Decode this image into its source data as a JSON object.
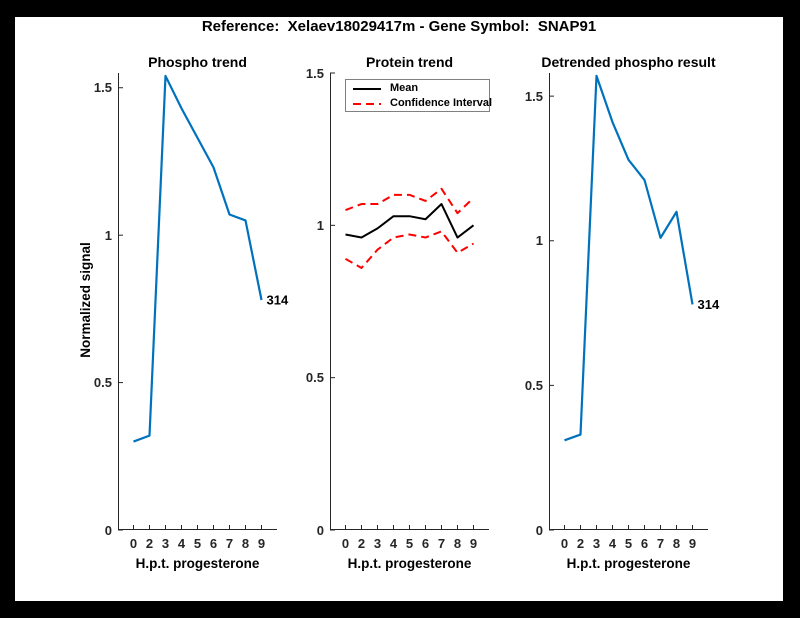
{
  "figure": {
    "title": "Reference:  Xelaev18029417m - Gene Symbol:  SNAP91",
    "background_color": "#000000",
    "canvas_color": "#ffffff"
  },
  "colors": {
    "line_blue": "#0072BD",
    "line_red": "#FF0000",
    "line_black": "#000000",
    "axis_color": "#262626",
    "legend_border": "#808080"
  },
  "chart_data": [
    {
      "type": "line",
      "title": "Phospho trend",
      "xlabel": "H.p.t. progesterone",
      "ylabel": "Normalized signal",
      "categories": [
        "0",
        "2",
        "3",
        "4",
        "5",
        "6",
        "7",
        "8",
        "9"
      ],
      "yticks": [
        0,
        0.5,
        1,
        1.5
      ],
      "yticklabels": [
        "0",
        "0.5",
        "1",
        "1.5"
      ],
      "ylim": [
        0,
        1.55
      ],
      "grid": false,
      "series": [
        {
          "name": "Phospho trend",
          "color": "#0072BD",
          "style": "solid",
          "width": 2.2,
          "values": [
            0.3,
            0.32,
            1.54,
            1.43,
            1.33,
            1.23,
            1.07,
            1.05,
            0.78
          ]
        }
      ],
      "annotation": {
        "text": "314",
        "anchor": "last-point"
      }
    },
    {
      "type": "line",
      "title": "Protein trend",
      "xlabel": "H.p.t. progesterone",
      "ylabel": "",
      "categories": [
        "0",
        "2",
        "3",
        "4",
        "5",
        "6",
        "7",
        "8",
        "9"
      ],
      "yticks": [
        0,
        0.5,
        1,
        1.5
      ],
      "yticklabels": [
        "0",
        "0.5",
        "1",
        "1.5"
      ],
      "ylim": [
        0,
        1.5
      ],
      "grid": false,
      "series": [
        {
          "name": "Mean",
          "color": "#000000",
          "style": "solid",
          "width": 2,
          "values": [
            0.97,
            0.96,
            0.99,
            1.03,
            1.03,
            1.02,
            1.07,
            0.96,
            1.0
          ]
        },
        {
          "name": "Confidence Interval (upper)",
          "color": "#FF0000",
          "style": "dashed",
          "width": 2,
          "values": [
            1.05,
            1.07,
            1.07,
            1.1,
            1.1,
            1.08,
            1.12,
            1.04,
            1.09
          ]
        },
        {
          "name": "Confidence Interval (lower)",
          "color": "#FF0000",
          "style": "dashed",
          "width": 2,
          "values": [
            0.89,
            0.86,
            0.92,
            0.96,
            0.97,
            0.96,
            0.98,
            0.91,
            0.94
          ]
        }
      ],
      "legend": {
        "position": "northwest",
        "entries": [
          {
            "label": "Mean",
            "color": "#000000",
            "style": "solid"
          },
          {
            "label": "Confidence Interval",
            "color": "#FF0000",
            "style": "dashed"
          }
        ]
      }
    },
    {
      "type": "line",
      "title": "Detrended phospho result",
      "xlabel": "H.p.t. progesterone",
      "ylabel": "",
      "categories": [
        "0",
        "2",
        "3",
        "4",
        "5",
        "6",
        "7",
        "8",
        "9"
      ],
      "yticks": [
        0,
        0.5,
        1,
        1.5
      ],
      "yticklabels": [
        "0",
        "0.5",
        "1",
        "1.5"
      ],
      "ylim": [
        0,
        1.58
      ],
      "grid": false,
      "series": [
        {
          "name": "Detrended phospho",
          "color": "#0072BD",
          "style": "solid",
          "width": 2.2,
          "values": [
            0.31,
            0.33,
            1.57,
            1.41,
            1.28,
            1.21,
            1.01,
            1.1,
            0.78
          ]
        }
      ],
      "annotation": {
        "text": "314",
        "anchor": "last-point"
      }
    }
  ]
}
